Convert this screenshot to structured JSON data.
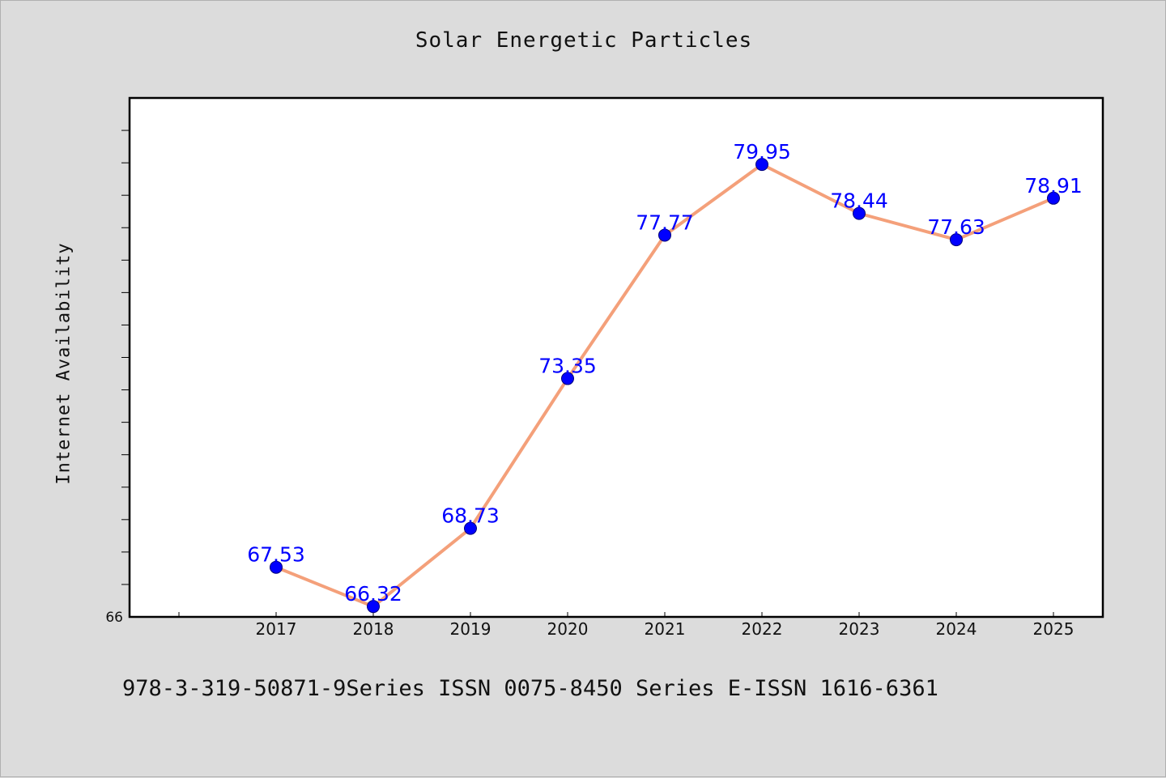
{
  "chart_data": {
    "type": "line",
    "title": "Solar Energetic Particles",
    "xlabel": "",
    "ylabel": "Internet Availability",
    "categories": [
      "2017",
      "2018",
      "2019",
      "2020",
      "2021",
      "2022",
      "2023",
      "2024",
      "2025"
    ],
    "series": [
      {
        "values": [
          67.53,
          66.32,
          68.73,
          73.35,
          77.77,
          79.95,
          78.44,
          77.63,
          78.91
        ],
        "data_labels": [
          "67.53",
          "66.32",
          "68.73",
          "73.35",
          "77.77",
          "79.95",
          "78.44",
          "77.63",
          "78.91"
        ]
      }
    ],
    "ylim": [
      66,
      82
    ],
    "y_tick_labels": [
      "66"
    ],
    "line_color": "#f4a07a",
    "marker_color": "#0000ff",
    "label_color": "#0000ff",
    "grid": false,
    "legend": "none"
  },
  "footer": "978-3-319-50871-9Series ISSN 0075-8450 Series E-ISSN 1616-6361"
}
